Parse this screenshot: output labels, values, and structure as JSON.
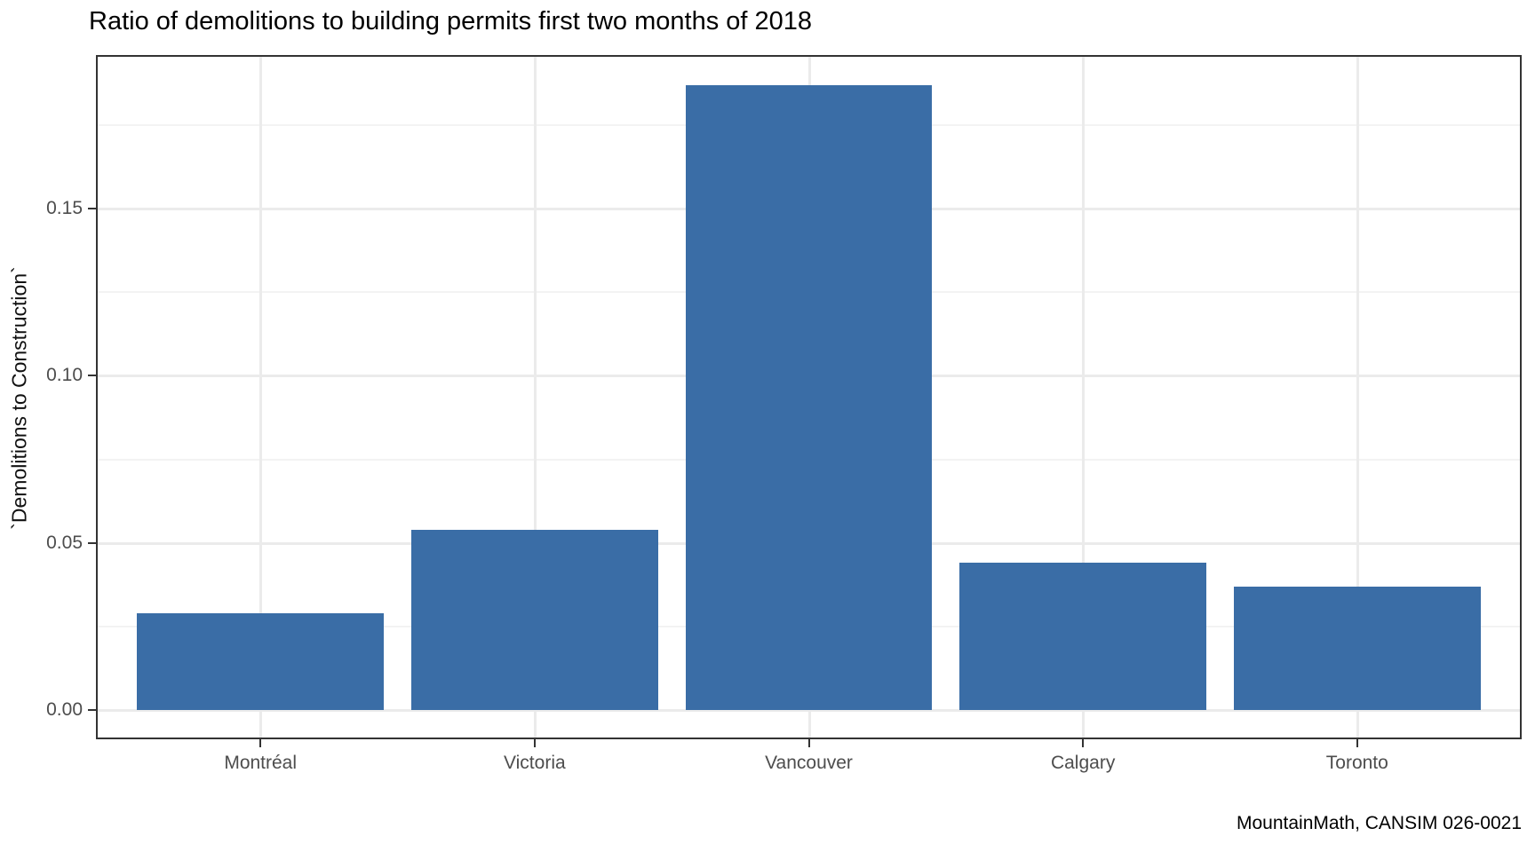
{
  "chart_data": {
    "type": "bar",
    "title": "Ratio of demolitions to building permits first two months of 2018",
    "ylabel": "`Demolitions to Construction`",
    "xlabel": "",
    "caption": "MountainMath, CANSIM 026-0021",
    "categories": [
      "Montréal",
      "Victoria",
      "Vancouver",
      "Calgary",
      "Toronto"
    ],
    "values": [
      0.029,
      0.054,
      0.187,
      0.044,
      0.037
    ],
    "bar_color": "#3a6da6",
    "yticks": [
      {
        "value": 0.0,
        "label": "0.00"
      },
      {
        "value": 0.05,
        "label": "0.05"
      },
      {
        "value": 0.1,
        "label": "0.10"
      },
      {
        "value": 0.15,
        "label": "0.15"
      }
    ],
    "y_minor": [
      0.025,
      0.075,
      0.125,
      0.175
    ],
    "ylim": [
      0,
      0.196
    ],
    "grid": "major-and-minor-horizontal, major-vertical-at-categories",
    "legend": "none"
  }
}
